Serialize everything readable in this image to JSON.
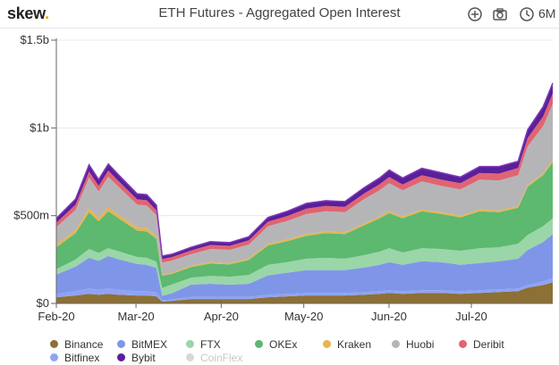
{
  "header": {
    "logo_text": "skew",
    "logo_dot": ".",
    "title": "ETH Futures - Aggregated Open Interest",
    "range": "6M",
    "icons": [
      "plus-circle-icon",
      "camera-icon",
      "clock-icon"
    ]
  },
  "colors": {
    "Binance": "#8c7035",
    "Bitfinex": "#8fa3f5",
    "BitMEX": "#7f96e8",
    "Bybit": "#5b1f9a",
    "FTX": "#9ad6a8",
    "CoinFlex": "#cfcfcf",
    "OKEx": "#5db870",
    "Kraken": "#e5b550",
    "Huobi": "#b5b5b8",
    "Deribit": "#e06472",
    "top": "#7d3bb8"
  },
  "legend": [
    {
      "name": "Binance",
      "enabled": true
    },
    {
      "name": "BitMEX",
      "enabled": true
    },
    {
      "name": "FTX",
      "enabled": true
    },
    {
      "name": "OKEx",
      "enabled": true
    },
    {
      "name": "Kraken",
      "enabled": true
    },
    {
      "name": "Huobi",
      "enabled": true
    },
    {
      "name": "Deribit",
      "enabled": true
    },
    {
      "name": "Bitfinex",
      "enabled": true
    },
    {
      "name": "Bybit",
      "enabled": true
    },
    {
      "name": "CoinFlex",
      "enabled": false
    }
  ],
  "chart_data": {
    "type": "area",
    "stacked": true,
    "title": "ETH Futures - Aggregated Open Interest",
    "x_unit": "weeks since 2020-02-01",
    "x_ticks": [
      {
        "x": 0,
        "label": "Feb-20"
      },
      {
        "x": 4.14,
        "label": "Mar-20"
      },
      {
        "x": 8.57,
        "label": "Apr-20"
      },
      {
        "x": 12.86,
        "label": "May-20"
      },
      {
        "x": 17.29,
        "label": "Jun-20"
      },
      {
        "x": 21.57,
        "label": "Jul-20"
      }
    ],
    "y_ticks": [
      {
        "value": 0,
        "label": "$0"
      },
      {
        "value": 500,
        "label": "$500m"
      },
      {
        "value": 1000,
        "label": "$1b"
      },
      {
        "value": 1500,
        "label": "$1.5b"
      }
    ],
    "ylim": [
      0,
      1500
    ],
    "y_unit": "USD millions",
    "grid": true,
    "legend_position": "bottom",
    "x": [
      0,
      1,
      1.7,
      2.2,
      2.7,
      3.2,
      4.2,
      4.7,
      5.2,
      5.5,
      6,
      7,
      8,
      9,
      10,
      11,
      12,
      13,
      14,
      15,
      16,
      16.8,
      17.3,
      18,
      19,
      20,
      21,
      22,
      23,
      24,
      24.5,
      25.3,
      25.8
    ],
    "series": [
      {
        "name": "Binance",
        "values": [
          35,
          45,
          55,
          50,
          55,
          50,
          45,
          45,
          40,
          10,
          15,
          25,
          25,
          25,
          25,
          35,
          40,
          45,
          45,
          45,
          50,
          55,
          60,
          55,
          60,
          60,
          55,
          60,
          65,
          70,
          90,
          105,
          120
        ]
      },
      {
        "name": "Bitfinex",
        "values": [
          20,
          25,
          30,
          28,
          30,
          28,
          25,
          25,
          22,
          8,
          8,
          12,
          12,
          12,
          12,
          15,
          15,
          15,
          15,
          15,
          15,
          15,
          15,
          15,
          15,
          15,
          15,
          15,
          15,
          15,
          15,
          20,
          25
        ]
      },
      {
        "name": "BitMEX",
        "values": [
          110,
          140,
          175,
          165,
          185,
          175,
          155,
          150,
          140,
          25,
          35,
          70,
          75,
          70,
          75,
          110,
          120,
          130,
          130,
          130,
          140,
          150,
          160,
          150,
          165,
          160,
          150,
          155,
          160,
          170,
          200,
          225,
          250
        ]
      },
      {
        "name": "FTX",
        "values": [
          30,
          40,
          50,
          45,
          45,
          45,
          40,
          40,
          35,
          45,
          50,
          40,
          45,
          45,
          50,
          60,
          60,
          65,
          70,
          65,
          70,
          75,
          80,
          70,
          75,
          75,
          80,
          85,
          80,
          85,
          85,
          90,
          90
        ]
      },
      {
        "name": "OKEx",
        "values": [
          125,
          150,
          210,
          180,
          210,
          190,
          150,
          150,
          130,
          70,
          60,
          60,
          70,
          70,
          85,
          110,
          120,
          130,
          140,
          140,
          170,
          190,
          200,
          195,
          210,
          200,
          190,
          210,
          200,
          205,
          275,
          290,
          320
        ]
      },
      {
        "name": "Kraken",
        "values": [
          15,
          18,
          22,
          20,
          22,
          20,
          18,
          18,
          15,
          5,
          6,
          8,
          8,
          8,
          8,
          10,
          10,
          10,
          10,
          10,
          10,
          10,
          10,
          10,
          10,
          10,
          10,
          10,
          10,
          10,
          10,
          10,
          12
        ]
      },
      {
        "name": "Huobi",
        "values": [
          100,
          115,
          175,
          150,
          175,
          160,
          130,
          130,
          120,
          70,
          70,
          65,
          75,
          75,
          80,
          100,
          105,
          115,
          115,
          115,
          140,
          150,
          160,
          150,
          160,
          150,
          150,
          170,
          170,
          175,
          220,
          270,
          320
        ]
      },
      {
        "name": "Deribit",
        "values": [
          25,
          30,
          35,
          32,
          35,
          33,
          30,
          30,
          28,
          20,
          20,
          22,
          23,
          23,
          24,
          26,
          28,
          30,
          30,
          30,
          32,
          34,
          35,
          33,
          35,
          35,
          35,
          38,
          40,
          42,
          48,
          55,
          60
        ]
      },
      {
        "name": "Bybit",
        "values": [
          25,
          32,
          38,
          35,
          38,
          36,
          32,
          32,
          30,
          17,
          16,
          18,
          19,
          19,
          21,
          24,
          27,
          30,
          30,
          30,
          33,
          36,
          40,
          37,
          40,
          40,
          35,
          37,
          40,
          38,
          47,
          55,
          58
        ]
      }
    ]
  }
}
